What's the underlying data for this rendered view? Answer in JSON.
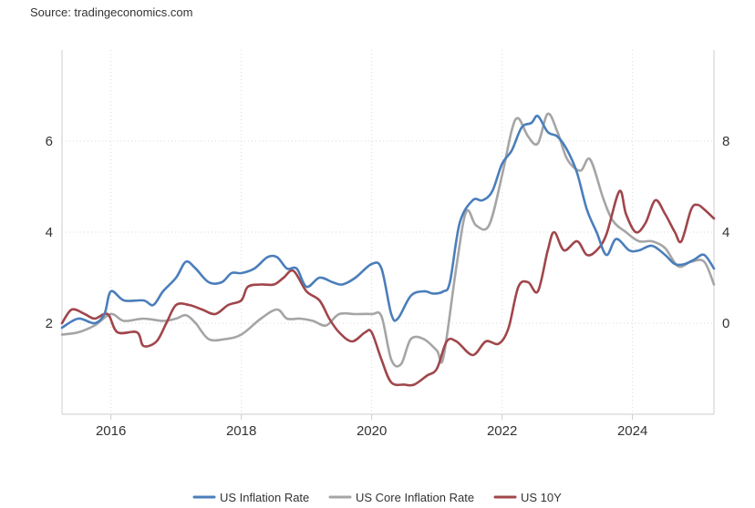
{
  "source_text": "Source: tradingeconomics.com",
  "chart_data": {
    "type": "line",
    "title": "",
    "xlabel": "",
    "ylabel": "",
    "x_ticks": [
      "2016",
      "2018",
      "2020",
      "2022",
      "2024"
    ],
    "x_range": [
      2015.25,
      2025.25
    ],
    "y_left": {
      "ticks": [
        2,
        4,
        6
      ],
      "range": [
        0,
        8
      ]
    },
    "y_right": {
      "ticks": [
        0,
        4,
        8
      ],
      "range": [
        -4,
        12
      ]
    },
    "grid": "dotted",
    "legend_position": "bottom-center",
    "series": [
      {
        "name": "US Inflation Rate",
        "axis": "left",
        "color": "#4a7ebb",
        "points": [
          [
            2015.25,
            1.9
          ],
          [
            2015.5,
            2.1
          ],
          [
            2015.75,
            2.0
          ],
          [
            2015.9,
            2.2
          ],
          [
            2016.0,
            2.7
          ],
          [
            2016.2,
            2.5
          ],
          [
            2016.5,
            2.5
          ],
          [
            2016.65,
            2.4
          ],
          [
            2016.8,
            2.7
          ],
          [
            2017.0,
            3.0
          ],
          [
            2017.15,
            3.35
          ],
          [
            2017.3,
            3.2
          ],
          [
            2017.5,
            2.9
          ],
          [
            2017.7,
            2.9
          ],
          [
            2017.85,
            3.1
          ],
          [
            2018.0,
            3.1
          ],
          [
            2018.2,
            3.2
          ],
          [
            2018.4,
            3.45
          ],
          [
            2018.55,
            3.45
          ],
          [
            2018.7,
            3.2
          ],
          [
            2018.85,
            3.2
          ],
          [
            2019.0,
            2.8
          ],
          [
            2019.2,
            3.0
          ],
          [
            2019.4,
            2.9
          ],
          [
            2019.55,
            2.85
          ],
          [
            2019.75,
            3.0
          ],
          [
            2020.0,
            3.3
          ],
          [
            2020.15,
            3.2
          ],
          [
            2020.3,
            2.2
          ],
          [
            2020.4,
            2.1
          ],
          [
            2020.6,
            2.6
          ],
          [
            2020.8,
            2.7
          ],
          [
            2020.95,
            2.65
          ],
          [
            2021.1,
            2.7
          ],
          [
            2021.2,
            2.9
          ],
          [
            2021.35,
            4.2
          ],
          [
            2021.55,
            4.7
          ],
          [
            2021.7,
            4.7
          ],
          [
            2021.85,
            4.9
          ],
          [
            2022.0,
            5.5
          ],
          [
            2022.15,
            5.8
          ],
          [
            2022.3,
            6.3
          ],
          [
            2022.45,
            6.4
          ],
          [
            2022.55,
            6.55
          ],
          [
            2022.7,
            6.2
          ],
          [
            2022.85,
            6.1
          ],
          [
            2023.0,
            5.8
          ],
          [
            2023.15,
            5.3
          ],
          [
            2023.3,
            4.5
          ],
          [
            2023.45,
            4.0
          ],
          [
            2023.6,
            3.5
          ],
          [
            2023.75,
            3.85
          ],
          [
            2023.95,
            3.6
          ],
          [
            2024.1,
            3.6
          ],
          [
            2024.3,
            3.7
          ],
          [
            2024.5,
            3.5
          ],
          [
            2024.65,
            3.3
          ],
          [
            2024.8,
            3.3
          ],
          [
            2024.95,
            3.4
          ],
          [
            2025.1,
            3.5
          ],
          [
            2025.25,
            3.2
          ]
        ]
      },
      {
        "name": "US Core Inflation Rate",
        "axis": "right",
        "color": "#a5a5a5",
        "points": [
          [
            2015.25,
            -0.5
          ],
          [
            2015.5,
            -0.4
          ],
          [
            2015.75,
            -0.1
          ],
          [
            2016.0,
            0.4
          ],
          [
            2016.2,
            0.1
          ],
          [
            2016.5,
            0.2
          ],
          [
            2016.8,
            0.1
          ],
          [
            2017.0,
            0.2
          ],
          [
            2017.15,
            0.35
          ],
          [
            2017.3,
            0.0
          ],
          [
            2017.5,
            -0.7
          ],
          [
            2017.75,
            -0.7
          ],
          [
            2018.0,
            -0.5
          ],
          [
            2018.3,
            0.2
          ],
          [
            2018.55,
            0.6
          ],
          [
            2018.7,
            0.2
          ],
          [
            2018.9,
            0.2
          ],
          [
            2019.1,
            0.1
          ],
          [
            2019.3,
            -0.1
          ],
          [
            2019.5,
            0.4
          ],
          [
            2019.75,
            0.4
          ],
          [
            2020.0,
            0.4
          ],
          [
            2020.15,
            0.3
          ],
          [
            2020.3,
            -1.6
          ],
          [
            2020.45,
            -1.8
          ],
          [
            2020.6,
            -0.7
          ],
          [
            2020.8,
            -0.7
          ],
          [
            2021.0,
            -1.2
          ],
          [
            2021.1,
            -1.5
          ],
          [
            2021.3,
            2.5
          ],
          [
            2021.45,
            4.9
          ],
          [
            2021.6,
            4.3
          ],
          [
            2021.8,
            4.3
          ],
          [
            2022.0,
            6.5
          ],
          [
            2022.15,
            8.5
          ],
          [
            2022.25,
            9.0
          ],
          [
            2022.4,
            8.2
          ],
          [
            2022.55,
            7.9
          ],
          [
            2022.7,
            9.2
          ],
          [
            2022.85,
            8.4
          ],
          [
            2023.0,
            7.2
          ],
          [
            2023.2,
            6.7
          ],
          [
            2023.35,
            7.2
          ],
          [
            2023.55,
            5.5
          ],
          [
            2023.7,
            4.5
          ],
          [
            2023.9,
            4.0
          ],
          [
            2024.1,
            3.6
          ],
          [
            2024.3,
            3.6
          ],
          [
            2024.5,
            3.3
          ],
          [
            2024.7,
            2.5
          ],
          [
            2024.9,
            2.7
          ],
          [
            2025.1,
            2.7
          ],
          [
            2025.25,
            1.7
          ]
        ]
      },
      {
        "name": "US 10Y",
        "axis": "left",
        "color": "#a0464b",
        "points": [
          [
            2015.25,
            2.0
          ],
          [
            2015.4,
            2.3
          ],
          [
            2015.6,
            2.2
          ],
          [
            2015.75,
            2.1
          ],
          [
            2015.95,
            2.2
          ],
          [
            2016.1,
            1.8
          ],
          [
            2016.4,
            1.8
          ],
          [
            2016.5,
            1.5
          ],
          [
            2016.7,
            1.6
          ],
          [
            2016.85,
            2.0
          ],
          [
            2017.0,
            2.4
          ],
          [
            2017.2,
            2.4
          ],
          [
            2017.4,
            2.3
          ],
          [
            2017.6,
            2.2
          ],
          [
            2017.8,
            2.4
          ],
          [
            2018.0,
            2.5
          ],
          [
            2018.1,
            2.8
          ],
          [
            2018.3,
            2.85
          ],
          [
            2018.5,
            2.85
          ],
          [
            2018.65,
            3.0
          ],
          [
            2018.8,
            3.15
          ],
          [
            2019.0,
            2.7
          ],
          [
            2019.2,
            2.5
          ],
          [
            2019.35,
            2.1
          ],
          [
            2019.5,
            1.8
          ],
          [
            2019.7,
            1.6
          ],
          [
            2019.9,
            1.8
          ],
          [
            2020.0,
            1.8
          ],
          [
            2020.15,
            1.2
          ],
          [
            2020.3,
            0.7
          ],
          [
            2020.5,
            0.65
          ],
          [
            2020.65,
            0.65
          ],
          [
            2020.85,
            0.85
          ],
          [
            2021.0,
            1.0
          ],
          [
            2021.15,
            1.6
          ],
          [
            2021.3,
            1.6
          ],
          [
            2021.55,
            1.3
          ],
          [
            2021.75,
            1.6
          ],
          [
            2021.95,
            1.55
          ],
          [
            2022.1,
            1.9
          ],
          [
            2022.25,
            2.8
          ],
          [
            2022.4,
            2.9
          ],
          [
            2022.55,
            2.7
          ],
          [
            2022.7,
            3.6
          ],
          [
            2022.8,
            4.0
          ],
          [
            2022.95,
            3.6
          ],
          [
            2023.15,
            3.8
          ],
          [
            2023.3,
            3.5
          ],
          [
            2023.45,
            3.6
          ],
          [
            2023.6,
            3.95
          ],
          [
            2023.8,
            4.9
          ],
          [
            2023.9,
            4.4
          ],
          [
            2024.05,
            4.0
          ],
          [
            2024.2,
            4.2
          ],
          [
            2024.35,
            4.7
          ],
          [
            2024.5,
            4.4
          ],
          [
            2024.65,
            4.0
          ],
          [
            2024.75,
            3.8
          ],
          [
            2024.9,
            4.5
          ],
          [
            2025.0,
            4.6
          ],
          [
            2025.1,
            4.5
          ],
          [
            2025.25,
            4.3
          ]
        ]
      }
    ]
  }
}
